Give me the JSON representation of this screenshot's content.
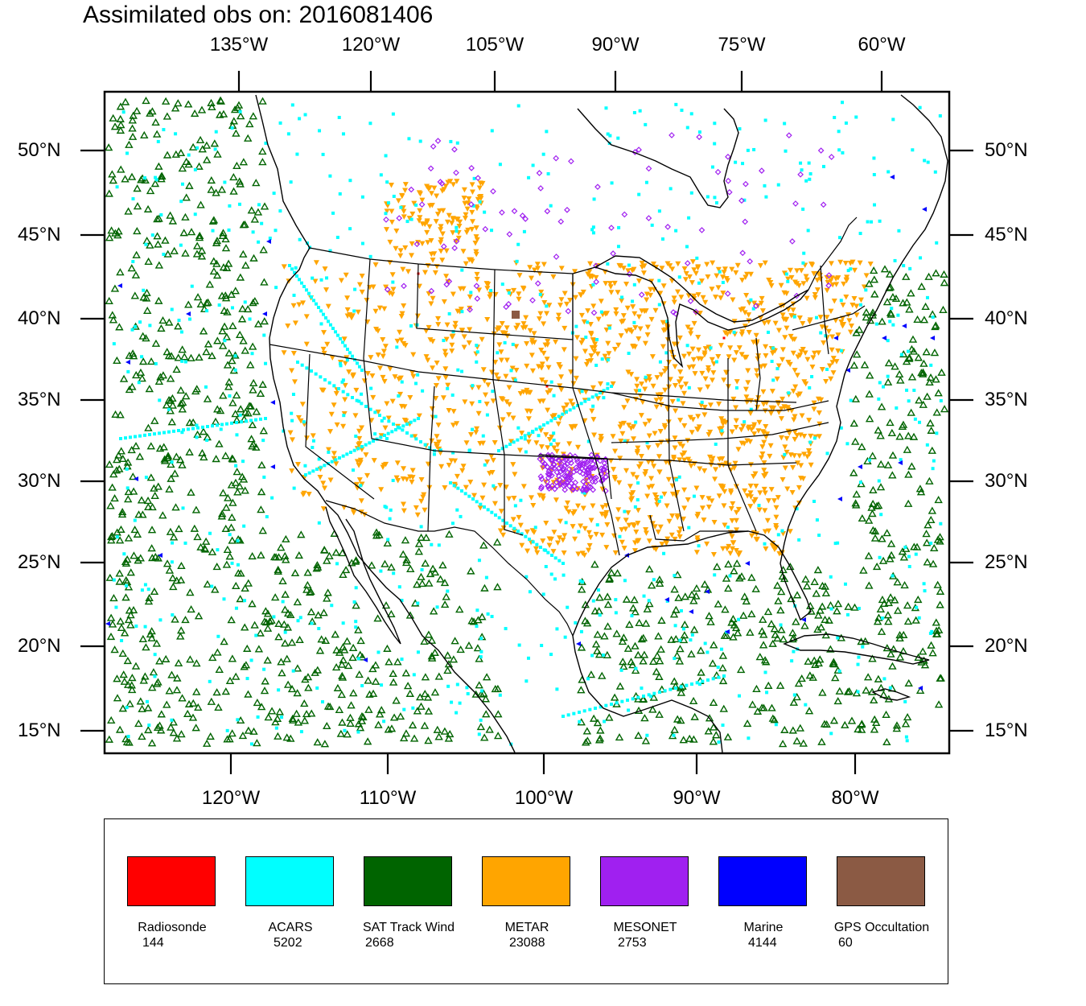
{
  "title": "Assimilated obs on: 2016081406",
  "top_axis": [
    "135°W",
    "120°W",
    "105°W",
    "90°W",
    "75°W",
    "60°W"
  ],
  "bottom_axis": [
    "120°W",
    "110°W",
    "100°W",
    "90°W",
    "80°W"
  ],
  "left_axis": [
    "50°N",
    "45°N",
    "40°N",
    "35°N",
    "30°N",
    "25°N",
    "20°N",
    "15°N"
  ],
  "right_axis": [
    "50°N",
    "45°N",
    "40°N",
    "35°N",
    "30°N",
    "25°N",
    "20°N",
    "15°N"
  ],
  "legend": [
    {
      "label": "Radiosonde",
      "count": "144",
      "color": "#ff0000"
    },
    {
      "label": "ACARS",
      "count": "5202",
      "color": "#00ffff"
    },
    {
      "label": "SAT Track Wind",
      "count": "2668",
      "color": "#006400"
    },
    {
      "label": "METAR",
      "count": "23088",
      "color": "#ffa500"
    },
    {
      "label": "MESONET",
      "count": "2753",
      "color": "#a020f0"
    },
    {
      "label": "Marine",
      "count": "4144",
      "color": "#0000ff"
    },
    {
      "label": "GPS Occultation",
      "count": "60",
      "color": "#8b5a44"
    }
  ]
}
